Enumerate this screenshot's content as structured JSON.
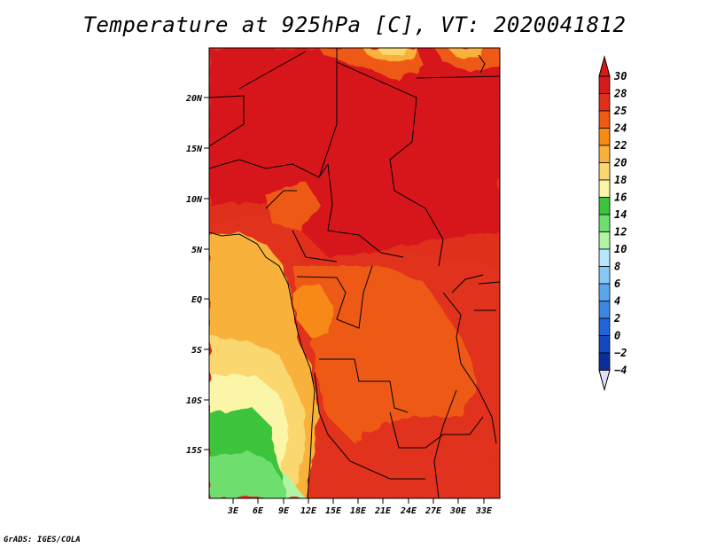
{
  "title": "Temperature at 925hPa [C], VT: 2020041812",
  "credit": "GrADS: IGES/COLA",
  "map": {
    "variable": "Temperature at 925hPa",
    "units": "C",
    "valid_time": "2020041812",
    "lat_ticks": [
      "20N",
      "15N",
      "10N",
      "5N",
      "EQ",
      "5S",
      "10S",
      "15S"
    ],
    "lon_ticks": [
      "3E",
      "6E",
      "9E",
      "12E",
      "15E",
      "18E",
      "21E",
      "24E",
      "27E",
      "30E",
      "33E"
    ]
  },
  "colorbar": {
    "labels": [
      "30",
      "28",
      "25",
      "24",
      "22",
      "20",
      "18",
      "16",
      "14",
      "12",
      "10",
      "8",
      "6",
      "4",
      "2",
      "0",
      "−2",
      "−4"
    ],
    "colors": [
      "#d7191c",
      "#e0301c",
      "#ee5a12",
      "#f78a12",
      "#f8b23a",
      "#fbd770",
      "#fbf5a8",
      "#3cc43c",
      "#6ede6e",
      "#b2f4a6",
      "#b8e6fa",
      "#88c8f4",
      "#5aa6ec",
      "#3a86e0",
      "#2065d6",
      "#1448be",
      "#0c2e9a",
      "#070a68"
    ],
    "top_arrow_color": "#d7191c",
    "bottom_arrow_color": "#e0e0fa"
  }
}
